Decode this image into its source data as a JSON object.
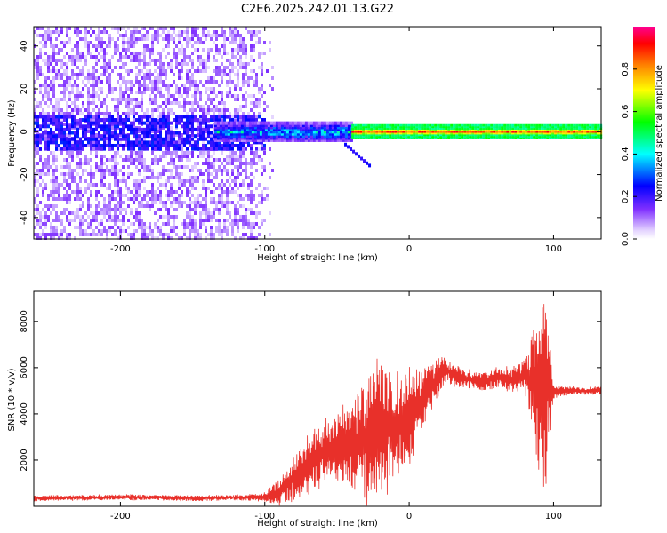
{
  "title": "C2E6.2025.242.01.13.G22",
  "chart_data": [
    {
      "type": "heatmap",
      "title": "C2E6.2025.242.01.13.G22",
      "xlabel": "Height of straight line (km)",
      "ylabel": "Frequency (Hz)",
      "xlim": [
        -260,
        133
      ],
      "ylim": [
        -50,
        49
      ],
      "xticks": [
        -200,
        -100,
        0,
        100
      ],
      "yticks": [
        -40,
        -20,
        0,
        20,
        40
      ],
      "xtick_labels": [
        "-200",
        "-100",
        "0",
        "100"
      ],
      "ytick_labels": [
        "-40",
        "-20",
        "0",
        "20",
        "40"
      ],
      "colorbar": {
        "label": "Normalized spectral amplitude",
        "range": [
          0,
          1
        ],
        "ticks": [
          0.0,
          0.2,
          0.4,
          0.6,
          0.8
        ],
        "tick_labels": [
          "0.0",
          "0.2",
          "0.4",
          "0.6",
          "0.8"
        ]
      },
      "regions": [
        {
          "name": "noise",
          "x_range": [
            -260,
            -100
          ],
          "freq_range": [
            -50,
            49
          ],
          "amplitude": 0.12
        },
        {
          "name": "carrier-onset",
          "x_range": [
            -135,
            -40
          ],
          "freq_range": [
            -4,
            4
          ],
          "amplitude": 0.45
        },
        {
          "name": "carrier",
          "x_range": [
            -40,
            133
          ],
          "freq_range": [
            -2,
            2
          ],
          "amplitude": 0.9
        },
        {
          "name": "dip-feature",
          "x_range": [
            -45,
            -28
          ],
          "freq_range": [
            -12,
            -6
          ],
          "amplitude": 0.2
        }
      ]
    },
    {
      "type": "line",
      "xlabel": "Height of straight line (km)",
      "ylabel": "SNR (10 * v/v)",
      "xlim": [
        -260,
        133
      ],
      "ylim": [
        0,
        9300
      ],
      "xticks": [
        -200,
        -100,
        0,
        100
      ],
      "yticks": [
        2000,
        4000,
        6000,
        8000
      ],
      "xtick_labels": [
        "-200",
        "-100",
        "0",
        "100"
      ],
      "ytick_labels": [
        "2000",
        "4000",
        "6000",
        "8000"
      ],
      "color": "#e8302a",
      "series": [
        {
          "name": "SNR",
          "x": [
            -260,
            -200,
            -150,
            -120,
            -100,
            -90,
            -80,
            -70,
            -60,
            -50,
            -40,
            -30,
            -20,
            -10,
            0,
            10,
            20,
            25,
            30,
            40,
            50,
            60,
            70,
            80,
            85,
            90,
            95,
            100,
            110,
            120,
            133
          ],
          "y": [
            350,
            400,
            350,
            380,
            400,
            600,
            1200,
            1800,
            2300,
            2600,
            2700,
            2900,
            3300,
            3400,
            3800,
            4800,
            5500,
            6000,
            5700,
            5500,
            5400,
            5600,
            5500,
            5600,
            5500,
            5000,
            5000,
            5000,
            5000,
            5000,
            5000
          ],
          "spread": [
            100,
            100,
            100,
            100,
            150,
            500,
            800,
            1200,
            1100,
            1300,
            1500,
            2200,
            2600,
            1800,
            1800,
            1000,
            700,
            500,
            400,
            350,
            350,
            400,
            450,
            650,
            1500,
            3500,
            3800,
            250,
            150,
            150,
            150
          ]
        }
      ]
    }
  ]
}
